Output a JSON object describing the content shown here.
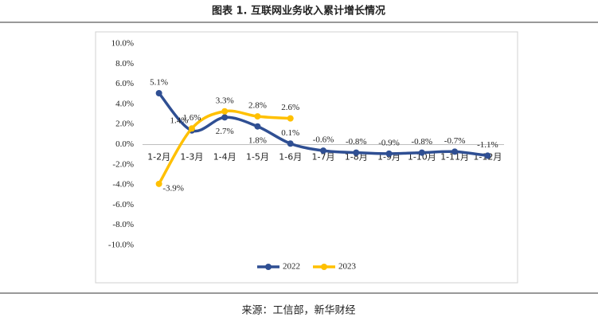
{
  "title": "图表 1.  互联网业务收入累计增长情况",
  "source": "来源：工信部，新华财经",
  "chart_data": {
    "type": "line",
    "categories": [
      "1-2月",
      "1-3月",
      "1-4月",
      "1-5月",
      "1-6月",
      "1-7月",
      "1-8月",
      "1-9月",
      "1-10月",
      "1-11月",
      "1-12月"
    ],
    "series": [
      {
        "name": "2022",
        "color": "#2f4f93",
        "values": [
          5.1,
          1.4,
          2.7,
          1.8,
          0.1,
          -0.6,
          -0.8,
          -0.9,
          -0.8,
          -0.7,
          -1.1
        ],
        "value_labels": [
          "5.1%",
          "1.4%",
          "2.7%",
          "1.8%",
          "0.1%",
          "-0.6%",
          "-0.8%",
          "-0.9%",
          "-0.8%",
          "-0.7%",
          "-1.1%"
        ]
      },
      {
        "name": "2023",
        "color": "#ffc000",
        "values": [
          -3.9,
          1.6,
          3.3,
          2.8,
          2.6,
          null,
          null,
          null,
          null,
          null,
          null
        ],
        "value_labels": [
          "-3.9%",
          "1.6%",
          "3.3%",
          "2.8%",
          "2.6%",
          null,
          null,
          null,
          null,
          null,
          null
        ]
      }
    ],
    "ylim": [
      -10,
      10
    ],
    "yticks": [
      {
        "value": -10,
        "label": "-10.0%"
      },
      {
        "value": -8,
        "label": "-8.0%"
      },
      {
        "value": -6,
        "label": "-6.0%"
      },
      {
        "value": -4,
        "label": "-4.0%"
      },
      {
        "value": -2,
        "label": "-2.0%"
      },
      {
        "value": 0,
        "label": "0.0%"
      },
      {
        "value": 2,
        "label": "2.0%"
      },
      {
        "value": 4,
        "label": "4.0%"
      },
      {
        "value": 6,
        "label": "6.0%"
      },
      {
        "value": 8,
        "label": "8.0%"
      },
      {
        "value": 10,
        "label": "10.0%"
      }
    ],
    "legend": "bottom",
    "smooth": true
  }
}
